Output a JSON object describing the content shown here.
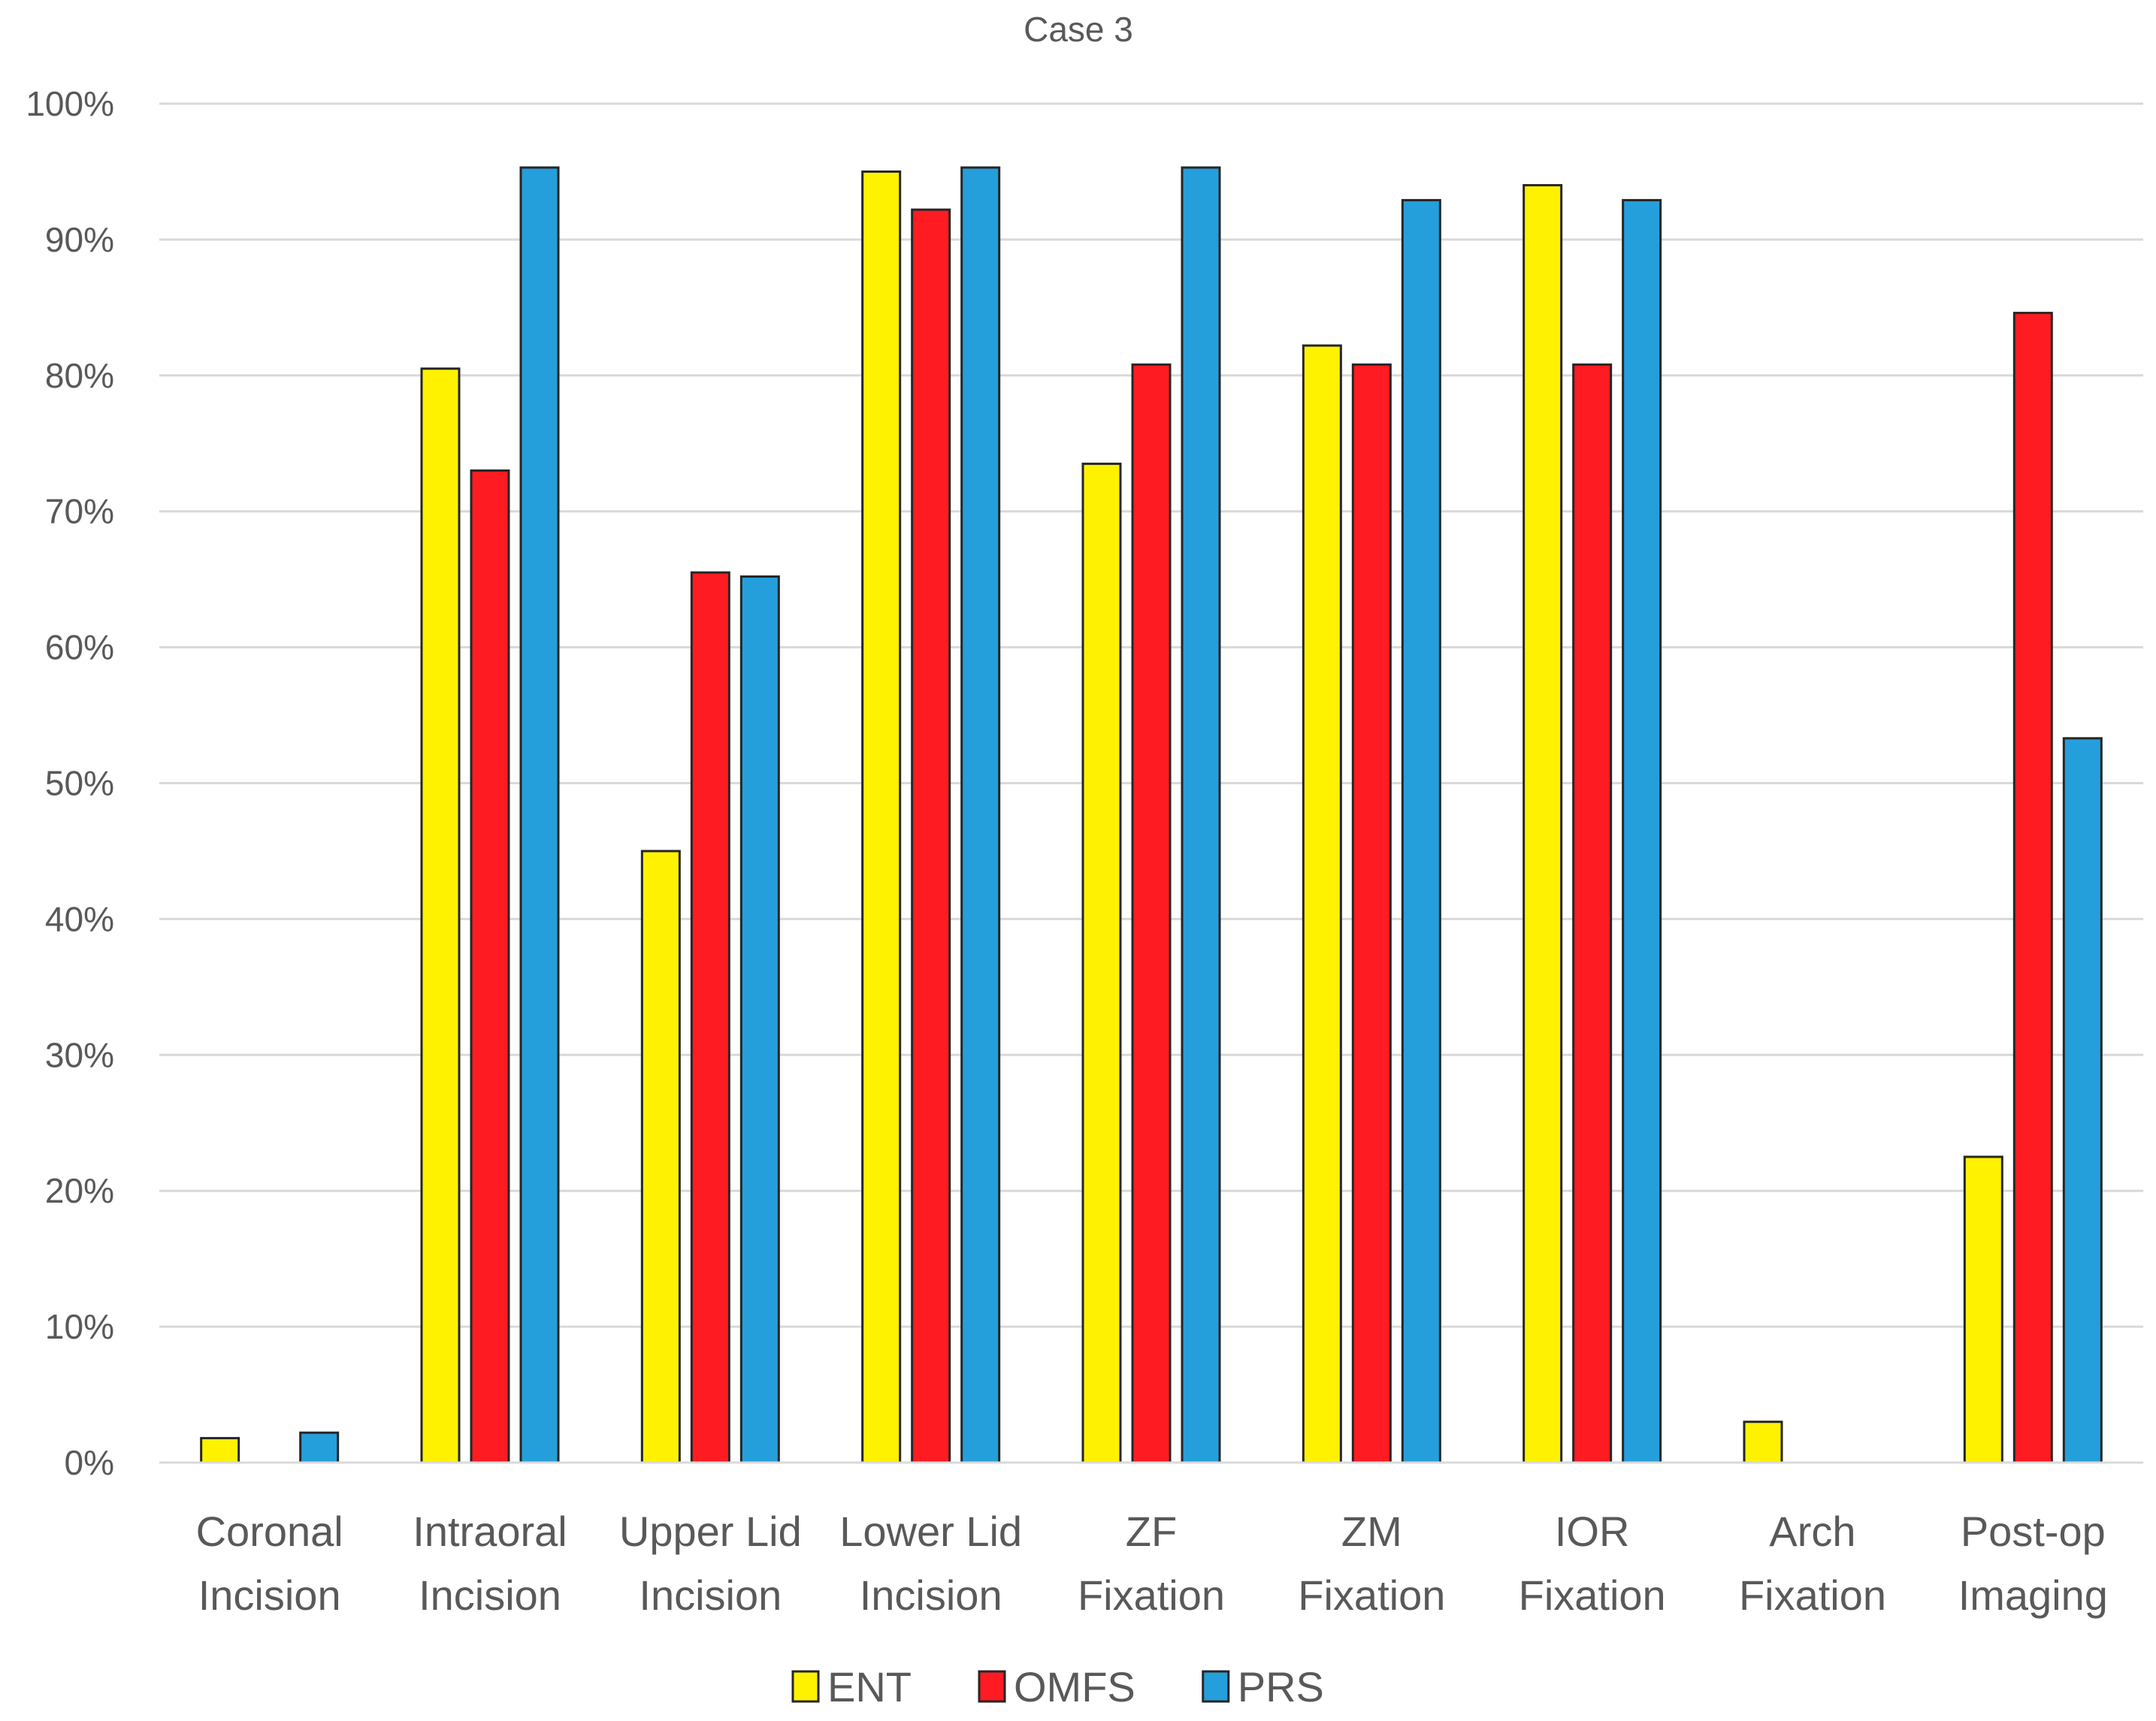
{
  "chart_data": {
    "type": "bar",
    "title": "Case 3",
    "xlabel": "",
    "ylabel": "",
    "ylim": [
      0,
      100
    ],
    "yticks": [
      "0%",
      "10%",
      "20%",
      "30%",
      "40%",
      "50%",
      "60%",
      "70%",
      "80%",
      "90%",
      "100%"
    ],
    "categories": [
      [
        "Coronal",
        "Incision"
      ],
      [
        "Intraoral",
        "Incision"
      ],
      [
        "Upper Lid",
        "Incision"
      ],
      [
        "Lower Lid",
        "Incision"
      ],
      [
        "ZF",
        "Fixation"
      ],
      [
        "ZM",
        "Fixation"
      ],
      [
        "IOR",
        "Fixation"
      ],
      [
        "Arch",
        "Fixation"
      ],
      [
        "Post-op",
        "Imaging"
      ]
    ],
    "series": [
      {
        "name": "ENT",
        "color": "#FFF200",
        "values": [
          1.8,
          80.5,
          45.0,
          95.0,
          73.5,
          82.2,
          94.0,
          3.0,
          22.5
        ]
      },
      {
        "name": "OMFS",
        "color": "#FF1B22",
        "values": [
          0,
          73.0,
          65.5,
          92.2,
          80.8,
          80.8,
          80.8,
          0,
          84.6
        ]
      },
      {
        "name": "PRS",
        "color": "#259FDB",
        "values": [
          2.2,
          95.3,
          65.2,
          95.3,
          95.3,
          92.9,
          92.9,
          0,
          53.3
        ]
      }
    ],
    "grid": true,
    "legend_position": "bottom-center"
  }
}
